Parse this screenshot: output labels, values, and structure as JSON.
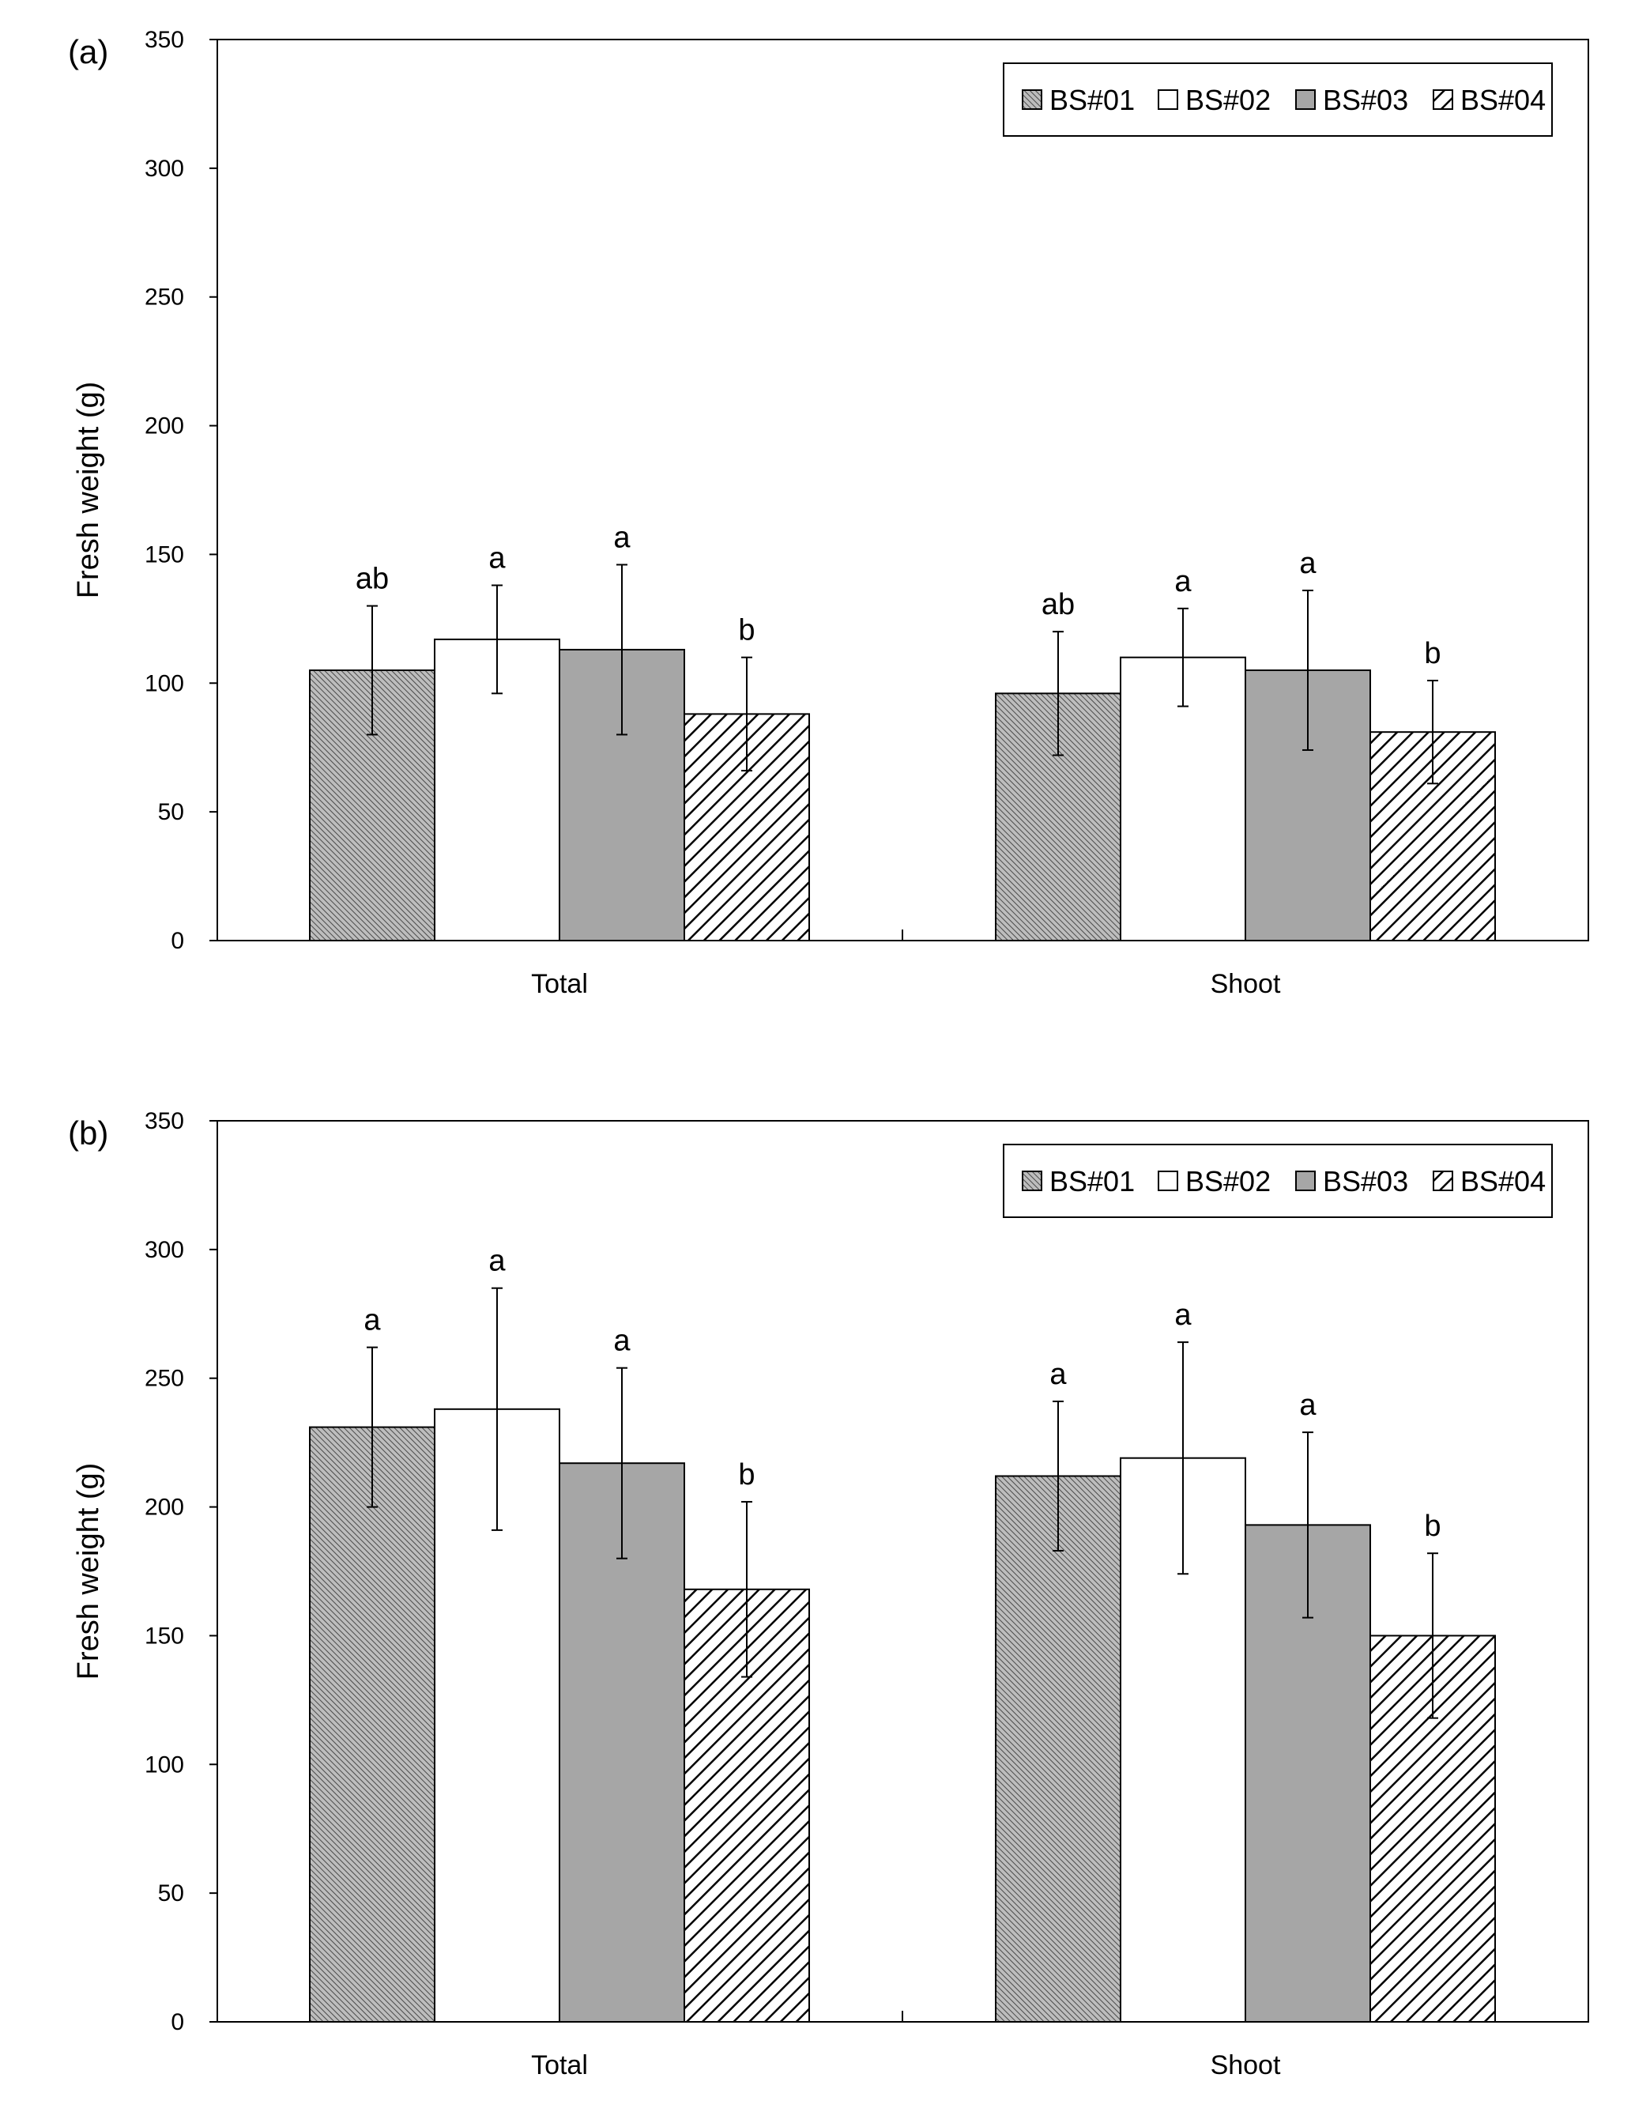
{
  "figure": {
    "title": ""
  },
  "colors": {
    "axis": "#000000",
    "bs01_fill": "#bdbdbd",
    "bs01_line": "#4a4a4a",
    "bs02_fill": "#ffffff",
    "bs03_fill": "#a6a6a6",
    "bs04_fill": "#ffffff",
    "bs04_line": "#000000"
  },
  "chart_data": [
    {
      "type": "bar",
      "panel": "(a)",
      "title": "",
      "xlabel": "",
      "ylabel": "Fresh weight (g)",
      "ylim": [
        0,
        350
      ],
      "yticks": [
        0,
        50,
        100,
        150,
        200,
        250,
        300,
        350
      ],
      "grid": false,
      "legend_position": "top-right",
      "categories": [
        "Total",
        "Shoot"
      ],
      "series": [
        {
          "name": "BS#01",
          "pattern": "fine-hatch",
          "values": [
            105,
            96
          ],
          "errors": [
            25,
            24
          ],
          "significance": [
            "ab",
            "ab"
          ]
        },
        {
          "name": "BS#02",
          "pattern": "white",
          "values": [
            117,
            110
          ],
          "errors": [
            21,
            19
          ],
          "significance": [
            "a",
            "a"
          ]
        },
        {
          "name": "BS#03",
          "pattern": "gray",
          "values": [
            113,
            105
          ],
          "errors": [
            33,
            31
          ],
          "significance": [
            "a",
            "a"
          ]
        },
        {
          "name": "BS#04",
          "pattern": "diagonal",
          "values": [
            88,
            81
          ],
          "errors": [
            22,
            20
          ],
          "significance": [
            "b",
            "b"
          ]
        }
      ]
    },
    {
      "type": "bar",
      "panel": "(b)",
      "title": "",
      "xlabel": "",
      "ylabel": "Fresh weight (g)",
      "ylim": [
        0,
        350
      ],
      "yticks": [
        0,
        50,
        100,
        150,
        200,
        250,
        300,
        350
      ],
      "grid": false,
      "legend_position": "top-right",
      "categories": [
        "Total",
        "Shoot"
      ],
      "series": [
        {
          "name": "BS#01",
          "pattern": "fine-hatch",
          "values": [
            231,
            212
          ],
          "errors": [
            31,
            29
          ],
          "significance": [
            "a",
            "a"
          ]
        },
        {
          "name": "BS#02",
          "pattern": "white",
          "values": [
            238,
            219
          ],
          "errors": [
            47,
            45
          ],
          "significance": [
            "a",
            "a"
          ]
        },
        {
          "name": "BS#03",
          "pattern": "gray",
          "values": [
            217,
            193
          ],
          "errors": [
            37,
            36
          ],
          "significance": [
            "a",
            "a"
          ]
        },
        {
          "name": "BS#04",
          "pattern": "diagonal",
          "values": [
            168,
            150
          ],
          "errors": [
            34,
            32
          ],
          "significance": [
            "b",
            "b"
          ]
        }
      ]
    }
  ]
}
